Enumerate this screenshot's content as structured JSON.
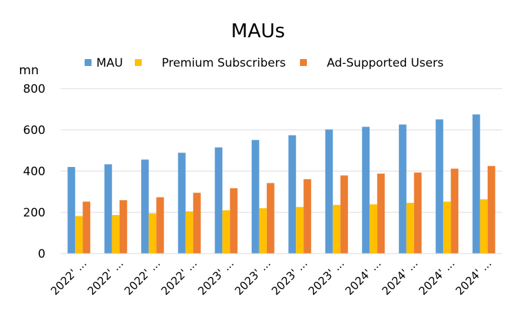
{
  "chart_data": {
    "type": "bar",
    "title": "MAUs",
    "ylabel": "mn",
    "xlabel": "",
    "ylim": [
      0,
      800
    ],
    "yticks": [
      0,
      200,
      400,
      600,
      800
    ],
    "grid": true,
    "legend_position": "top",
    "categories": [
      "2022' ...",
      "2022' ...",
      "2022' ...",
      "2022' ...",
      "2023' ...",
      "2023' ...",
      "2023' ...",
      "2023' ...",
      "2024' ...",
      "2024' ...",
      "2024' ...",
      "2024' ..."
    ],
    "series": [
      {
        "name": "MAU",
        "color": "#5B9BD5",
        "values": [
          420,
          433,
          456,
          489,
          515,
          551,
          574,
          602,
          615,
          626,
          651,
          675
        ]
      },
      {
        "name": "Premium Subscribers",
        "color": "#FFC000",
        "values": [
          182,
          187,
          195,
          205,
          210,
          220,
          226,
          236,
          239,
          246,
          252,
          263
        ]
      },
      {
        "name": "Ad-Supported Users",
        "color": "#ED7D31",
        "values": [
          252,
          259,
          273,
          295,
          317,
          342,
          361,
          379,
          388,
          393,
          412,
          425
        ]
      }
    ]
  }
}
